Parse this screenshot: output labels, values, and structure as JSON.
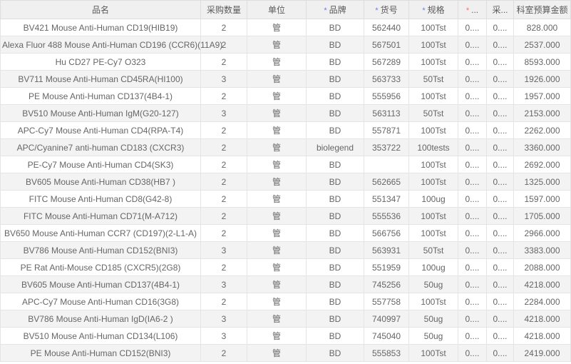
{
  "colors": {
    "required_blue": "#717ae6",
    "required_red": "#f56c6c",
    "header_bg": "#f0f0f0",
    "zebra_row_bg": "#f3f3f3"
  },
  "table": {
    "columns": [
      {
        "label": "品名",
        "required": null
      },
      {
        "label": "采购数量",
        "required": null
      },
      {
        "label": "单位",
        "required": null
      },
      {
        "label": "品牌",
        "required": "blue"
      },
      {
        "label": "货号",
        "required": "blue"
      },
      {
        "label": "规格",
        "required": "blue"
      },
      {
        "label": "...",
        "required": "red"
      },
      {
        "label": "采...",
        "required": null
      },
      {
        "label": "科室预算金额",
        "required": null
      }
    ],
    "rows": [
      [
        "BV421 Mouse Anti-Human CD19(HIB19)",
        "2",
        "管",
        "BD",
        "562440",
        "100Tst",
        "0....",
        "0....",
        "828.000"
      ],
      [
        "Alexa Fluor 488 Mouse Anti-Human CD196 (CCR6)(11A9)",
        "2",
        "管",
        "BD",
        "567501",
        "100Tst",
        "0....",
        "0....",
        "2537.000"
      ],
      [
        "Hu CD27 PE-Cy7 O323",
        "2",
        "管",
        "BD",
        "567289",
        "100Tst",
        "0....",
        "0....",
        "8593.000"
      ],
      [
        "BV711 Mouse Anti-Human CD45RA(HI100)",
        "3",
        "管",
        "BD",
        "563733",
        "50Tst",
        "0....",
        "0....",
        "1926.000"
      ],
      [
        "PE Mouse Anti-Human CD137(4B4-1)",
        "2",
        "管",
        "BD",
        "555956",
        "100Tst",
        "0....",
        "0....",
        "1957.000"
      ],
      [
        "BV510 Mouse Anti-Human IgM(G20-127)",
        "3",
        "管",
        "BD",
        "563113",
        "50Tst",
        "0....",
        "0....",
        "2153.000"
      ],
      [
        "APC-Cy7 Mouse Anti-Human CD4(RPA-T4)",
        "2",
        "管",
        "BD",
        "557871",
        "100Tst",
        "0....",
        "0....",
        "2262.000"
      ],
      [
        "APC/Cyanine7 anti-human CD183 (CXCR3)",
        "2",
        "管",
        "biolegend",
        "353722",
        "100tests",
        "0....",
        "0....",
        "3360.000"
      ],
      [
        "PE-Cy7 Mouse Anti-Human CD4(SK3)",
        "2",
        "管",
        "BD",
        "",
        "100Tst",
        "0....",
        "0....",
        "2692.000"
      ],
      [
        "BV605 Mouse Anti-Human CD38(HB7 )",
        "2",
        "管",
        "BD",
        "562665",
        "100Tst",
        "0....",
        "0....",
        "1325.000"
      ],
      [
        "FITC Mouse Anti-Human CD8(G42-8)",
        "2",
        "管",
        "BD",
        "551347",
        "100ug",
        "0....",
        "0....",
        "1597.000"
      ],
      [
        "FITC Mouse Anti-Human CD71(M-A712)",
        "2",
        "管",
        "BD",
        "555536",
        "100Tst",
        "0....",
        "0....",
        "1705.000"
      ],
      [
        "BV650 Mouse Anti-Human CCR7 (CD197)(2-L1-A)",
        "2",
        "管",
        "BD",
        "566756",
        "100Tst",
        "0....",
        "0....",
        "2966.000"
      ],
      [
        "BV786 Mouse Anti-Human CD152(BNI3)",
        "3",
        "管",
        "BD",
        "563931",
        "50Tst",
        "0....",
        "0....",
        "3383.000"
      ],
      [
        "PE Rat Anti-Mouse CD185 (CXCR5)(2G8)",
        "2",
        "管",
        "BD",
        "551959",
        "100ug",
        "0....",
        "0....",
        "2088.000"
      ],
      [
        "BV605 Mouse Anti-Human CD137(4B4-1)",
        "3",
        "管",
        "BD",
        "745256",
        "50ug",
        "0....",
        "0....",
        "4218.000"
      ],
      [
        "APC-Cy7 Mouse Anti-Human CD16(3G8)",
        "2",
        "管",
        "BD",
        "557758",
        "100Tst",
        "0....",
        "0....",
        "2284.000"
      ],
      [
        "BV786 Mouse Anti-Human IgD(IA6-2 )",
        "3",
        "管",
        "BD",
        "740997",
        "50ug",
        "0....",
        "0....",
        "4218.000"
      ],
      [
        "BV510 Mouse Anti-Human CD134(L106)",
        "3",
        "管",
        "BD",
        "745040",
        "50ug",
        "0....",
        "0....",
        "4218.000"
      ],
      [
        "PE Mouse Anti-Human CD152(BNI3)",
        "2",
        "管",
        "BD",
        "555853",
        "100Tst",
        "0....",
        "0....",
        "2419.000"
      ]
    ]
  }
}
